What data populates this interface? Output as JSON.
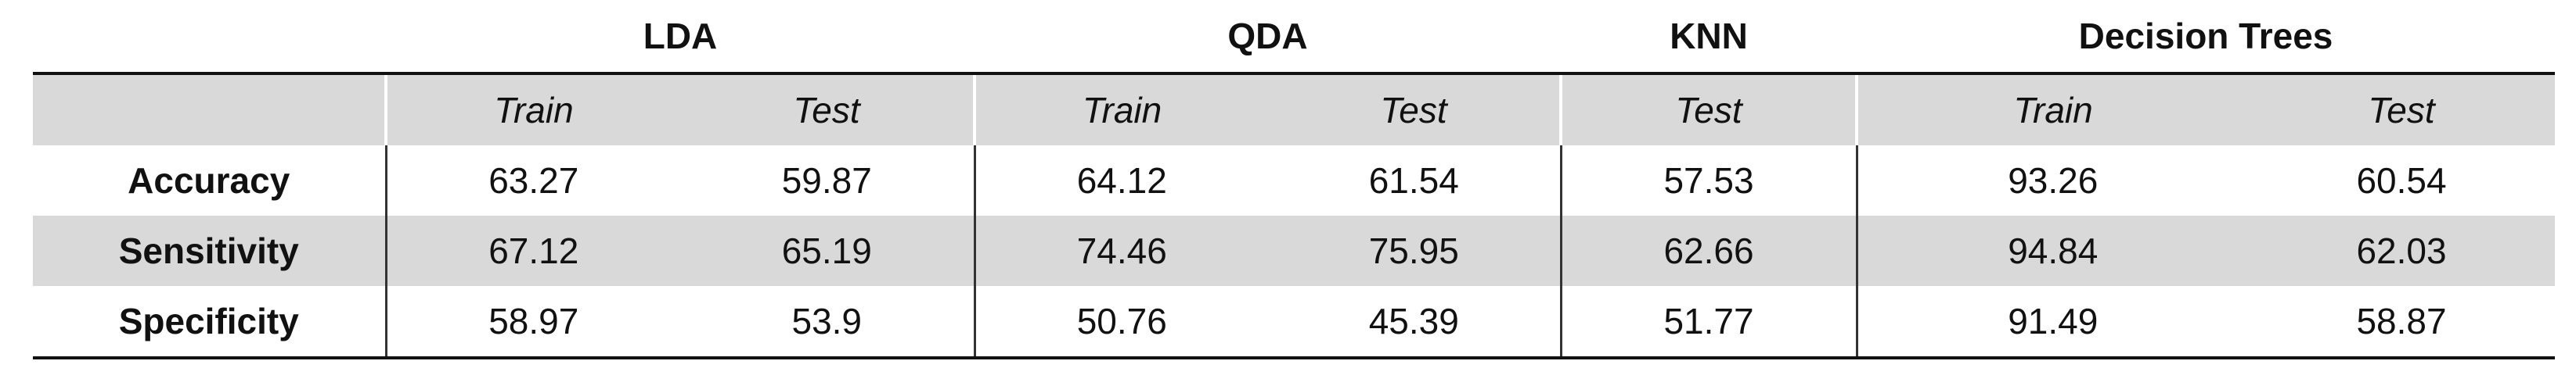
{
  "table": {
    "groups": [
      {
        "label": "LDA",
        "columns": [
          "Train",
          "Test"
        ]
      },
      {
        "label": "QDA",
        "columns": [
          "Train",
          "Test"
        ]
      },
      {
        "label": "KNN",
        "columns": [
          "Test"
        ]
      },
      {
        "label": "Decision Trees",
        "columns": [
          "Train",
          "Test"
        ]
      }
    ],
    "rows": [
      {
        "label": "Accuracy",
        "values": [
          63.27,
          59.87,
          64.12,
          61.54,
          57.53,
          93.26,
          60.54
        ]
      },
      {
        "label": "Sensitivity",
        "values": [
          67.12,
          65.19,
          74.46,
          75.95,
          62.66,
          94.84,
          62.03
        ]
      },
      {
        "label": "Specificity",
        "values": [
          58.97,
          53.9,
          50.76,
          45.39,
          51.77,
          91.49,
          58.87
        ]
      }
    ]
  }
}
